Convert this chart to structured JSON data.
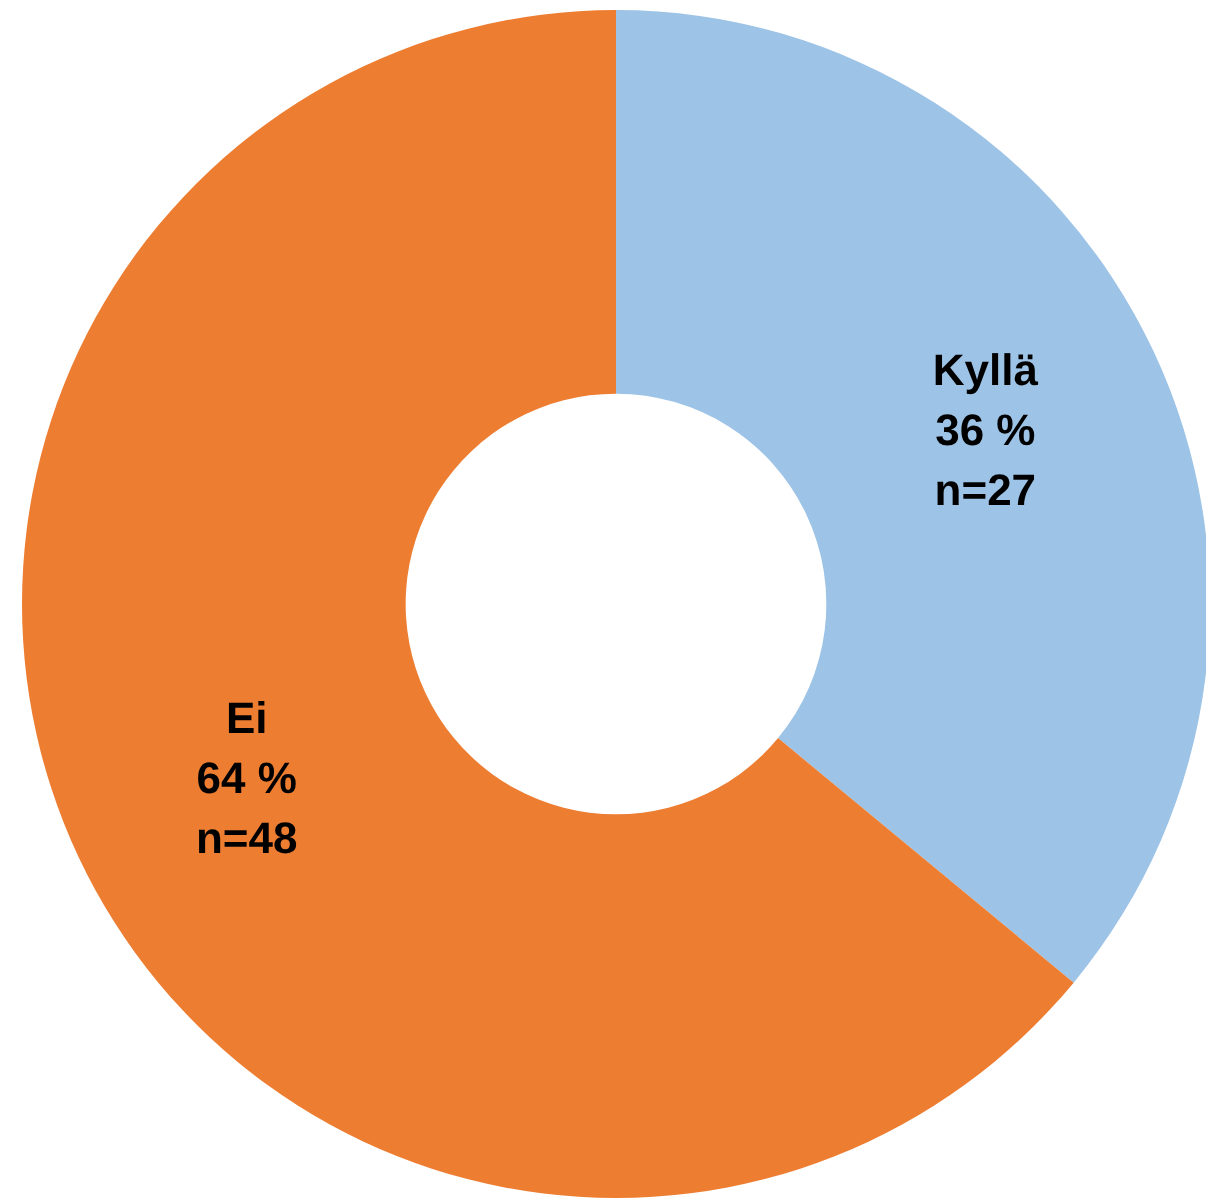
{
  "chart_data": {
    "type": "donut",
    "categories": [
      "Kyllä",
      "Ei"
    ],
    "values": [
      27,
      48
    ],
    "colors": [
      "#9dc3e6",
      "#ed7d31"
    ],
    "value_labels": [
      "36 %\nn=27",
      "64 %\nn=48"
    ],
    "legend": false
  }
}
